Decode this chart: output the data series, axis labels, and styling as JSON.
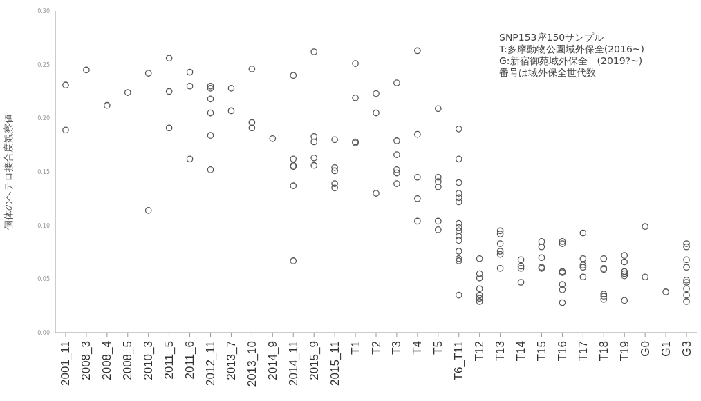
{
  "chart_data": {
    "type": "scatter",
    "ylabel": "個体のヘテロ接合度観察値",
    "categories": [
      "2001_11",
      "2008_3",
      "2008_4",
      "2008_5",
      "2010_3",
      "2011_5",
      "2011_6",
      "2012_11",
      "2013_7",
      "2013_10",
      "2014_9",
      "2014_11",
      "2015_9",
      "2015_11",
      "T1",
      "T2",
      "T3",
      "T4",
      "T5",
      "T6_T11",
      "T12",
      "T13",
      "T14",
      "T15",
      "T16",
      "T17",
      "T18",
      "T19",
      "G0",
      "G1",
      "G3"
    ],
    "series": [
      {
        "color": "#555555",
        "x": [
          "2001_11",
          "2001_11",
          "2008_3",
          "2008_4",
          "2008_5",
          "2010_3",
          "2010_3",
          "2011_5",
          "2011_5",
          "2011_5",
          "2011_6",
          "2011_6",
          "2011_6",
          "2012_11",
          "2012_11",
          "2012_11",
          "2012_11",
          "2012_11",
          "2012_11",
          "2013_7",
          "2013_7",
          "2013_10",
          "2013_10",
          "2013_10",
          "2014_9",
          "2014_11",
          "2014_11",
          "2014_11",
          "2014_11",
          "2014_11",
          "2014_11",
          "2015_9",
          "2015_9",
          "2015_9",
          "2015_9",
          "2015_9",
          "2015_11",
          "2015_11",
          "2015_11",
          "2015_11",
          "2015_11",
          "T1",
          "T1",
          "T1",
          "T1",
          "T2",
          "T2",
          "T2",
          "T3",
          "T3",
          "T3",
          "T3",
          "T3",
          "T3",
          "T4",
          "T4",
          "T4",
          "T4",
          "T4",
          "T5",
          "T5",
          "T5",
          "T5",
          "T5",
          "T5",
          "T6_T11",
          "T6_T11",
          "T6_T11",
          "T6_T11",
          "T6_T11",
          "T6_T11",
          "T6_T11",
          "T6_T11",
          "T6_T11",
          "T6_T11",
          "T6_T11",
          "T6_T11",
          "T6_T11",
          "T6_T11",
          "T6_T11",
          "T12",
          "T12",
          "T12",
          "T12",
          "T12",
          "T12",
          "T12",
          "T13",
          "T13",
          "T13",
          "T13",
          "T13",
          "T13",
          "T14",
          "T14",
          "T14",
          "T14",
          "T15",
          "T15",
          "T15",
          "T15",
          "T15",
          "T16",
          "T16",
          "T16",
          "T16",
          "T16",
          "T16",
          "T16",
          "T17",
          "T17",
          "T17",
          "T17",
          "T17",
          "T18",
          "T18",
          "T18",
          "T18",
          "T18",
          "T18",
          "T19",
          "T19",
          "T19",
          "T19",
          "T19",
          "T19",
          "G0",
          "G0",
          "G1",
          "G3",
          "G3",
          "G3",
          "G3",
          "G3",
          "G3",
          "G3",
          "G3",
          "G3"
        ],
        "values": [
          0.231,
          0.189,
          0.245,
          0.212,
          0.224,
          0.242,
          0.114,
          0.256,
          0.225,
          0.191,
          0.243,
          0.23,
          0.162,
          0.23,
          0.228,
          0.218,
          0.205,
          0.184,
          0.152,
          0.228,
          0.207,
          0.246,
          0.196,
          0.191,
          0.181,
          0.24,
          0.162,
          0.156,
          0.155,
          0.137,
          0.067,
          0.262,
          0.183,
          0.178,
          0.163,
          0.156,
          0.18,
          0.154,
          0.151,
          0.139,
          0.135,
          0.251,
          0.219,
          0.178,
          0.177,
          0.223,
          0.205,
          0.13,
          0.233,
          0.179,
          0.166,
          0.152,
          0.149,
          0.139,
          0.263,
          0.185,
          0.145,
          0.125,
          0.104,
          0.209,
          0.145,
          0.141,
          0.136,
          0.104,
          0.096,
          0.19,
          0.162,
          0.14,
          0.13,
          0.126,
          0.122,
          0.102,
          0.098,
          0.095,
          0.09,
          0.086,
          0.076,
          0.069,
          0.067,
          0.035,
          0.069,
          0.055,
          0.051,
          0.041,
          0.035,
          0.032,
          0.029,
          0.095,
          0.092,
          0.083,
          0.076,
          0.073,
          0.06,
          0.068,
          0.062,
          0.06,
          0.047,
          0.085,
          0.08,
          0.07,
          0.061,
          0.06,
          0.085,
          0.083,
          0.057,
          0.056,
          0.045,
          0.04,
          0.028,
          0.093,
          0.069,
          0.063,
          0.061,
          0.052,
          0.069,
          0.06,
          0.059,
          0.036,
          0.034,
          0.031,
          0.072,
          0.066,
          0.057,
          0.055,
          0.053,
          0.03,
          0.099,
          0.052,
          0.038,
          0.083,
          0.08,
          0.068,
          0.061,
          0.049,
          0.047,
          0.041,
          0.035,
          0.029
        ]
      }
    ],
    "ylim": [
      0,
      0.3
    ],
    "yticks": [
      {
        "value": 0,
        "label": "0.00"
      },
      {
        "value": 0.05,
        "label": "0.05"
      },
      {
        "value": 0.1,
        "label": "0.10"
      },
      {
        "value": 0.15,
        "label": "0.15"
      },
      {
        "value": 0.2,
        "label": "0.20"
      },
      {
        "value": 0.25,
        "label": "0.25"
      },
      {
        "value": 0.3,
        "label": "0.30"
      }
    ],
    "marker": "circle",
    "grid": false,
    "legend": false,
    "annotations": [
      "SNP153座150サンプル",
      "T:多摩動物公園域外保全(2016~)",
      "G:新宿御苑域外保全　(2019?~)",
      "番号は域外保全世代数"
    ]
  }
}
